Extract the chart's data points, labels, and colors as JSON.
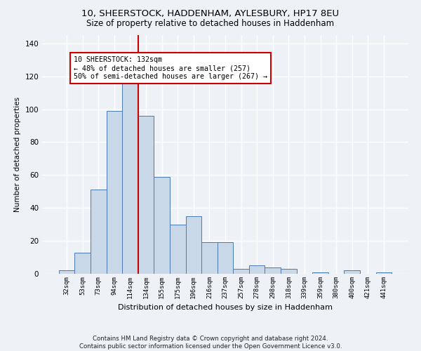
{
  "title1": "10, SHEERSTOCK, HADDENHAM, AYLESBURY, HP17 8EU",
  "title2": "Size of property relative to detached houses in Haddenham",
  "xlabel": "Distribution of detached houses by size in Haddenham",
  "ylabel": "Number of detached properties",
  "categories": [
    "32sqm",
    "53sqm",
    "73sqm",
    "94sqm",
    "114sqm",
    "134sqm",
    "155sqm",
    "175sqm",
    "196sqm",
    "216sqm",
    "237sqm",
    "257sqm",
    "278sqm",
    "298sqm",
    "318sqm",
    "339sqm",
    "359sqm",
    "380sqm",
    "400sqm",
    "421sqm",
    "441sqm"
  ],
  "values": [
    2,
    13,
    51,
    99,
    117,
    96,
    59,
    30,
    35,
    19,
    19,
    3,
    5,
    4,
    3,
    0,
    1,
    0,
    2,
    0,
    1
  ],
  "bar_color": "#c8d8e8",
  "bar_edge_color": "#4a7ab5",
  "property_line_color": "#cc0000",
  "annotation_text": "10 SHEERSTOCK: 132sqm\n← 48% of detached houses are smaller (257)\n50% of semi-detached houses are larger (267) →",
  "annotation_box_color": "#ffffff",
  "annotation_box_edge": "#cc0000",
  "ylim": [
    0,
    145
  ],
  "yticks": [
    0,
    20,
    40,
    60,
    80,
    100,
    120,
    140
  ],
  "footer": "Contains HM Land Registry data © Crown copyright and database right 2024.\nContains public sector information licensed under the Open Government Licence v3.0.",
  "bg_color": "#eef2f7",
  "plot_bg_color": "#eef2f7",
  "grid_color": "#ffffff"
}
